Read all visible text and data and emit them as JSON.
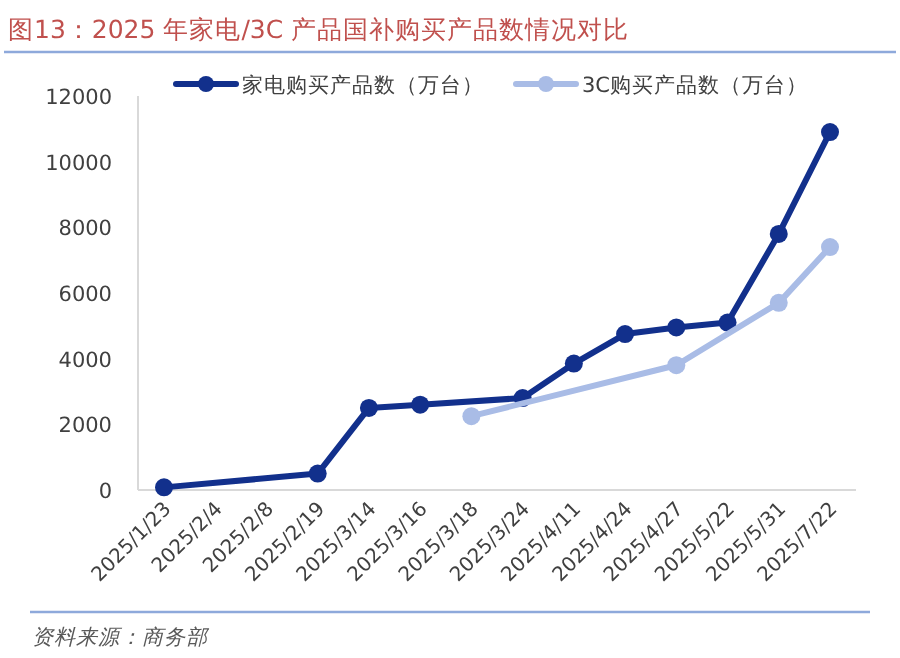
{
  "chart_data": {
    "type": "line",
    "title": "图13：2025 年家电/3C 产品国补购买产品数情况对比",
    "categories": [
      "2025/1/23",
      "2025/2/4",
      "2025/2/8",
      "2025/2/19",
      "2025/3/14",
      "2025/3/16",
      "2025/3/18",
      "2025/3/24",
      "2025/4/11",
      "2025/4/24",
      "2025/4/27",
      "2025/5/22",
      "2025/5/31",
      "2025/7/22"
    ],
    "series": [
      {
        "name": "家电购买产品数（万台）",
        "color": "#12308c",
        "values": [
          80,
          null,
          null,
          500,
          2500,
          2600,
          null,
          2800,
          3850,
          4750,
          4950,
          5100,
          7800,
          10900
        ]
      },
      {
        "name": "3C购买产品数（万台）",
        "color": "#a9bce6",
        "values": [
          null,
          null,
          null,
          null,
          null,
          null,
          2250,
          null,
          null,
          null,
          3800,
          null,
          5700,
          7400
        ]
      }
    ],
    "ylim": [
      0,
      12000
    ],
    "yticks": [
      0,
      2000,
      4000,
      6000,
      8000,
      10000,
      12000
    ],
    "marker": "circle",
    "legend": "top",
    "grid": false,
    "annotations": [
      "资料来源：商务部"
    ]
  }
}
